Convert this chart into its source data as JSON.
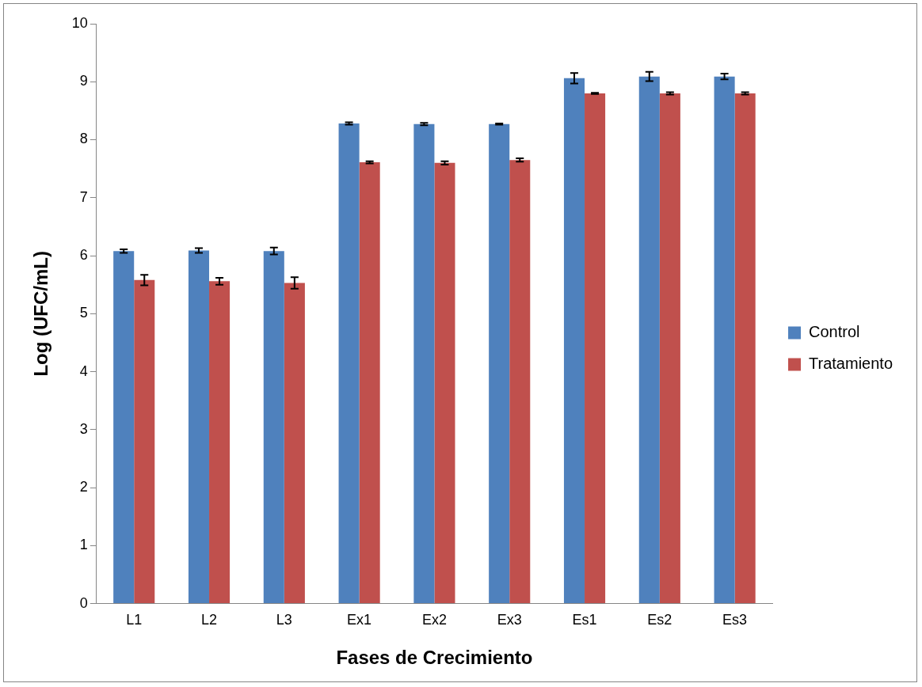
{
  "chart_data": {
    "type": "bar",
    "xlabel": "Fases de Crecimiento",
    "ylabel": "Log (UFC/mL)",
    "categories": [
      "L1",
      "L2",
      "L3",
      "Ex1",
      "Ex2",
      "Ex3",
      "Es1",
      "Es2",
      "Es3"
    ],
    "series": [
      {
        "name": "Control",
        "color": "#4f81bd",
        "values": [
          6.08,
          6.09,
          6.08,
          8.28,
          8.27,
          8.27,
          9.06,
          9.09,
          9.09
        ],
        "errors": [
          0.03,
          0.04,
          0.06,
          0.02,
          0.02,
          0.01,
          0.09,
          0.08,
          0.05
        ]
      },
      {
        "name": "Tratamiento",
        "color": "#c0504d",
        "values": [
          5.58,
          5.56,
          5.53,
          7.61,
          7.6,
          7.65,
          8.8,
          8.8,
          8.8
        ],
        "errors": [
          0.09,
          0.06,
          0.1,
          0.02,
          0.03,
          0.03,
          0.01,
          0.02,
          0.02
        ]
      }
    ],
    "ylim": [
      0,
      10
    ],
    "yticks": [
      0,
      1,
      2,
      3,
      4,
      5,
      6,
      7,
      8,
      9,
      10
    ],
    "grid": false,
    "legend": "right"
  }
}
